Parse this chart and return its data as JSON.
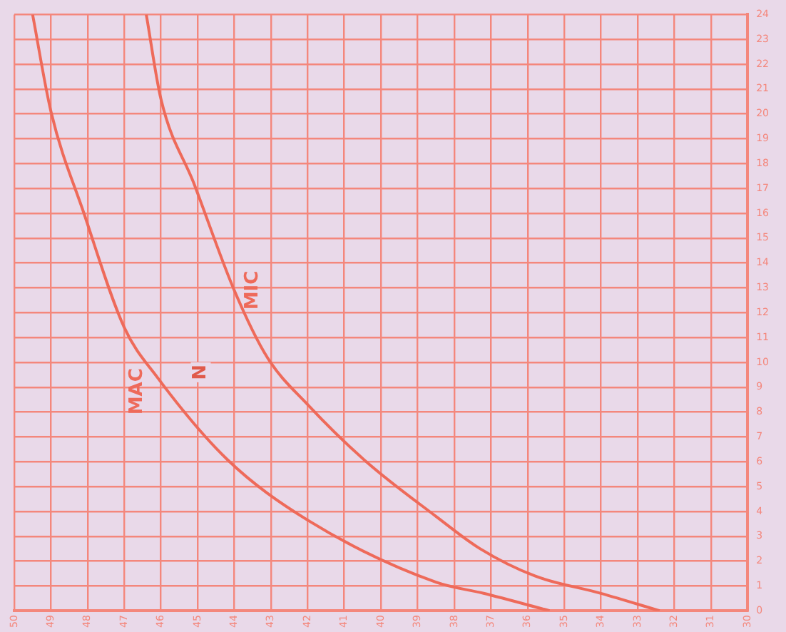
{
  "chart_data": {
    "type": "line",
    "xlim": [
      50,
      30
    ],
    "xticks": [
      50,
      49,
      48,
      47,
      46,
      45,
      44,
      43,
      42,
      41,
      40,
      39,
      38,
      37,
      36,
      35,
      34,
      33,
      32,
      31,
      30
    ],
    "ylim": [
      0,
      24
    ],
    "yticks": [
      0,
      1,
      2,
      3,
      4,
      5,
      6,
      7,
      8,
      9,
      10,
      11,
      12,
      13,
      14,
      15,
      16,
      17,
      18,
      19,
      20,
      21,
      22,
      23,
      24
    ],
    "grid": true,
    "legend": false,
    "marker": "none",
    "line_style": "solid",
    "series": [
      {
        "name": "MAC",
        "color": "#ee6a5a",
        "x": [
          49.5,
          49.0,
          48.1,
          47.0,
          46.1,
          44.2,
          42.0,
          38.5,
          37.2,
          35.4
        ],
        "values": [
          24.0,
          20.1,
          16.0,
          11.4,
          9.4,
          6.1,
          3.65,
          1.15,
          0.7,
          0
        ]
      },
      {
        "name": "MIC",
        "color": "#ee6a5a",
        "x": [
          46.4,
          46.0,
          45.1,
          44.0,
          43.1,
          42.0,
          40.4,
          38.5,
          37.3,
          35.8,
          34.0,
          32.4
        ],
        "values": [
          24.0,
          20.6,
          17.2,
          12.9,
          10.2,
          8.3,
          6.0,
          3.8,
          2.5,
          1.4,
          0.7,
          0
        ]
      }
    ],
    "annotations": [
      "N"
    ]
  }
}
